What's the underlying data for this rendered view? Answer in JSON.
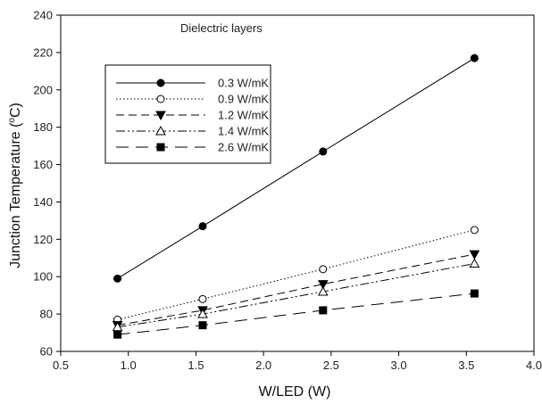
{
  "chart_data": {
    "type": "line",
    "annotation": "Dielectric layers",
    "xlabel": "W/LED (W)",
    "ylabel": "Junction Temperature (°C)",
    "ylabel_parts": {
      "main": "Junction Temperature (",
      "sup": "o",
      "unit": "C)"
    },
    "xlim": [
      0.5,
      4.0
    ],
    "ylim": [
      60,
      240
    ],
    "xticks": [
      "0.5",
      "1.0",
      "1.5",
      "2.0",
      "2.5",
      "3.0",
      "3.5",
      "4.0"
    ],
    "yticks": [
      "60",
      "80",
      "100",
      "120",
      "140",
      "160",
      "180",
      "200",
      "220",
      "240"
    ],
    "grid": false,
    "legend_position": "top-left",
    "x": [
      0.92,
      1.55,
      2.44,
      3.56
    ],
    "series": [
      {
        "name": "0.3 W/mK",
        "values": [
          99,
          127,
          167,
          217
        ],
        "marker": "filled-circle",
        "line": "solid"
      },
      {
        "name": "0.9 W/mK",
        "values": [
          77,
          88,
          104,
          125
        ],
        "marker": "open-circle",
        "line": "dotted"
      },
      {
        "name": "1.2 W/mK",
        "values": [
          74,
          82,
          96,
          112
        ],
        "marker": "filled-triangle-down",
        "line": "dashed"
      },
      {
        "name": "1.4 W/mK",
        "values": [
          73,
          80,
          92,
          107
        ],
        "marker": "open-triangle-up",
        "line": "dash-dot-dot"
      },
      {
        "name": "2.6 W/mK",
        "values": [
          69,
          74,
          82,
          91
        ],
        "marker": "filled-square",
        "line": "long-dash"
      }
    ]
  }
}
